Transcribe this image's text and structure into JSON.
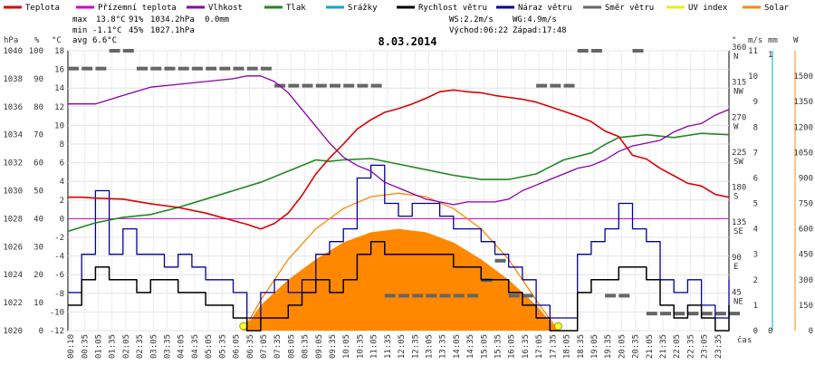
{
  "chart_data": {
    "type": "line",
    "title": "8.03.2014",
    "legend": [
      {
        "name": "Teplota",
        "color": "#dd0000"
      },
      {
        "name": "Přízemní teplota",
        "color": "#cc00cc"
      },
      {
        "name": "Vlhkost",
        "color": "#8800aa"
      },
      {
        "name": "Tlak",
        "color": "#228822"
      },
      {
        "name": "Srážky",
        "color": "#00aacc"
      },
      {
        "name": "Rychlost větru",
        "color": "#000000"
      },
      {
        "name": "Náraz větru",
        "color": "#000099"
      },
      {
        "name": "Směr větru",
        "color": "#666666"
      },
      {
        "name": "UV index",
        "color": "#eeee00"
      },
      {
        "name": "Solar",
        "color": "#ff8800"
      }
    ],
    "stats": {
      "max_label": "max",
      "max_temp": "13.8°C",
      "max_hum": "91%",
      "max_press": "1034.2hPa",
      "rain": "0.0mm",
      "min_label": "min",
      "min_temp": "-1.1°C",
      "min_hum": "45%",
      "min_press": "1027.1hPa",
      "avg_label": "avg",
      "avg_temp": "6.6°C"
    },
    "wind_info": {
      "ws": "WS:2.2m/s",
      "wg": "WG:4.9m/s",
      "sunrise": "Východ:06:22",
      "sunset": "Západ:17:48"
    },
    "axes": {
      "hpa_unit": "hPa",
      "pct_unit": "%",
      "temp_unit": "°C",
      "hpa_ticks": [
        "1040",
        "1038",
        "1036",
        "1034",
        "1032",
        "1030",
        "1028",
        "1026",
        "1024",
        "1022",
        "1020"
      ],
      "pct_ticks": [
        "100",
        "90",
        "80",
        "70",
        "60",
        "50",
        "40",
        "30",
        "20",
        "10",
        "0"
      ],
      "temp_ticks": [
        "18",
        "16",
        "14",
        "12",
        "10",
        "8",
        "6",
        "4",
        "2",
        "0",
        "-2",
        "-4",
        "-6",
        "-8",
        "-10",
        "-12"
      ],
      "dir_unit": "°",
      "dir_ticks": [
        {
          "deg": "360",
          "name": "N"
        },
        {
          "deg": "315",
          "name": "NW"
        },
        {
          "deg": "270",
          "name": "W"
        },
        {
          "deg": "225",
          "name": "SW"
        },
        {
          "deg": "180",
          "name": "S"
        },
        {
          "deg": "135",
          "name": "SE"
        },
        {
          "deg": "90",
          "name": "E"
        },
        {
          "deg": "45",
          "name": "NE"
        }
      ],
      "wind_unit": "m/s",
      "wind_ticks": [
        "11",
        "10",
        "9",
        "8",
        "7",
        "6",
        "5",
        "4",
        "3",
        "2",
        "1",
        "0"
      ],
      "rain_unit": "mm",
      "rain_ticks": [
        "1",
        "0"
      ],
      "solar_unit": "W",
      "solar_ticks": [
        "1500",
        "1350",
        "1200",
        "1050",
        "900",
        "750",
        "600",
        "450",
        "300",
        "150",
        "0"
      ],
      "xlabel": "čas",
      "time_ticks": [
        "00:10",
        "00:35",
        "01:05",
        "01:35",
        "02:05",
        "02:35",
        "03:05",
        "03:35",
        "04:05",
        "04:35",
        "05:05",
        "05:35",
        "06:05",
        "06:35",
        "07:05",
        "07:35",
        "08:05",
        "08:35",
        "09:05",
        "09:35",
        "10:05",
        "10:35",
        "11:05",
        "11:35",
        "12:05",
        "12:35",
        "13:05",
        "13:35",
        "14:05",
        "14:35",
        "15:05",
        "15:35",
        "16:05",
        "16:35",
        "17:05",
        "17:35",
        "18:05",
        "18:35",
        "19:05",
        "19:35",
        "20:05",
        "20:35",
        "21:05",
        "21:35",
        "22:05",
        "22:35",
        "23:05",
        "23:35"
      ]
    },
    "x_hours": [
      0,
      24
    ],
    "ylim_temp": [
      -12,
      18
    ],
    "series": [
      {
        "name": "Teplota",
        "unit": "°C",
        "x": [
          0,
          0.5,
          1,
          2,
          3,
          4,
          5,
          6,
          6.5,
          7,
          7.5,
          8,
          8.5,
          9,
          9.5,
          10,
          10.5,
          11,
          11.5,
          12,
          12.5,
          13,
          13.5,
          14,
          14.5,
          15,
          15.5,
          16,
          16.5,
          17,
          17.5,
          18,
          18.5,
          19,
          19.5,
          20,
          20.5,
          21,
          21.5,
          22,
          22.5,
          23,
          23.5,
          24
        ],
        "values": [
          2.3,
          2.3,
          2.2,
          2.1,
          1.6,
          1.2,
          0.6,
          -0.2,
          -0.6,
          -1.1,
          -0.5,
          0.6,
          2.5,
          4.8,
          6.5,
          8.0,
          9.6,
          10.6,
          11.4,
          11.8,
          12.3,
          12.9,
          13.6,
          13.8,
          13.6,
          13.5,
          13.2,
          13.0,
          12.8,
          12.5,
          12.0,
          11.5,
          11.0,
          10.4,
          9.4,
          8.8,
          6.8,
          6.4,
          5.4,
          4.6,
          3.8,
          3.5,
          2.6,
          2.3
        ]
      },
      {
        "name": "Přízemní teplota",
        "unit": "°C",
        "x": [
          0,
          24
        ],
        "values": [
          0,
          0
        ]
      },
      {
        "name": "Vlhkost",
        "unit": "%",
        "x": [
          0,
          1,
          2,
          3,
          4,
          5,
          6,
          6.5,
          7,
          7.5,
          8,
          8.5,
          9,
          9.5,
          10,
          10.5,
          11,
          11.5,
          12,
          12.5,
          13,
          13.5,
          14,
          14.5,
          15,
          15.5,
          16,
          16.5,
          17,
          17.5,
          18,
          18.5,
          19,
          19.5,
          20,
          20.5,
          21,
          21.5,
          22,
          22.5,
          23,
          23.5,
          24
        ],
        "values": [
          81,
          81,
          84,
          87,
          88,
          89,
          90,
          91,
          91,
          89,
          85,
          79,
          73,
          67,
          62,
          59,
          57,
          53,
          51,
          49,
          47,
          46,
          45,
          46,
          46,
          46,
          47,
          50,
          52,
          54,
          56,
          58,
          59,
          61,
          64,
          66,
          67,
          68,
          71,
          73,
          74,
          77,
          79
        ]
      },
      {
        "name": "Tlak",
        "unit": "hPa",
        "x": [
          0,
          1,
          2,
          3,
          4,
          5,
          6,
          7,
          8,
          8.5,
          9,
          9.5,
          10,
          11,
          12,
          13,
          14,
          15,
          16,
          17,
          17.5,
          18,
          19,
          19.5,
          20,
          21,
          22,
          23,
          24
        ],
        "values": [
          1027.1,
          1027.7,
          1028.1,
          1028.3,
          1028.8,
          1029.4,
          1030.0,
          1030.6,
          1031.4,
          1031.8,
          1032.2,
          1032.1,
          1032.2,
          1032.3,
          1031.9,
          1031.5,
          1031.1,
          1030.8,
          1030.8,
          1031.2,
          1031.7,
          1032.2,
          1032.7,
          1033.3,
          1033.8,
          1034.0,
          1033.8,
          1034.1,
          1034.0
        ]
      },
      {
        "name": "Srážky",
        "unit": "mm",
        "x": [
          0,
          24
        ],
        "values": [
          0,
          0
        ]
      },
      {
        "name": "Rychlost větru",
        "unit": "m/s",
        "x": [
          0,
          0.5,
          1,
          1.5,
          2,
          2.5,
          3,
          3.5,
          4,
          4.5,
          5,
          5.5,
          6,
          6.5,
          7,
          7.5,
          8,
          8.5,
          9,
          9.5,
          10,
          10.5,
          11,
          11.5,
          12,
          12.5,
          13,
          13.5,
          14,
          14.5,
          15,
          15.5,
          16,
          16.5,
          17,
          17.5,
          18,
          18.5,
          19,
          19.5,
          20,
          20.5,
          21,
          21.5,
          22,
          22.5,
          23,
          23.5,
          24
        ],
        "values": [
          1,
          2,
          2.5,
          2,
          2,
          1.5,
          2,
          2,
          1.5,
          1.5,
          1,
          1,
          0.5,
          0,
          0.5,
          0.5,
          1,
          1.5,
          2,
          1.5,
          2,
          3,
          3.5,
          3,
          3,
          3,
          3,
          3,
          2.5,
          2.5,
          2,
          2,
          1.5,
          1,
          0.5,
          0,
          0,
          1.5,
          2,
          2,
          2.5,
          2.5,
          2,
          1,
          0.5,
          1,
          0.5,
          0,
          1
        ]
      },
      {
        "name": "Náraz větru",
        "unit": "m/s",
        "x": [
          0,
          0.5,
          1,
          1.5,
          2,
          2.5,
          3,
          3.5,
          4,
          4.5,
          5,
          5.5,
          6,
          6.5,
          7,
          7.5,
          8,
          8.5,
          9,
          9.5,
          10,
          10.5,
          11,
          11.5,
          12,
          12.5,
          13,
          13.5,
          14,
          14.5,
          15,
          15.5,
          16,
          16.5,
          17,
          17.5,
          18,
          18.5,
          19,
          19.5,
          20,
          20.5,
          21,
          21.5,
          22,
          22.5,
          23,
          23.5,
          24
        ],
        "values": [
          1.5,
          3,
          5.5,
          3,
          4,
          3,
          3,
          2.5,
          3,
          2.5,
          2,
          2,
          1.5,
          0.5,
          1.5,
          2,
          1.5,
          2,
          3,
          3.5,
          4,
          6,
          6.5,
          5,
          4.5,
          5,
          5,
          4.5,
          4,
          4,
          3.5,
          3,
          2.5,
          2,
          1,
          0.5,
          0.5,
          3,
          3.5,
          4,
          5,
          4,
          3.5,
          2,
          1.5,
          2,
          1,
          0.5,
          2
        ]
      },
      {
        "name": "Solar",
        "unit": "W",
        "x": [
          6.37,
          7,
          8,
          9,
          10,
          11,
          12,
          13,
          14,
          15,
          16,
          17,
          17.8
        ],
        "values": [
          0,
          150,
          300,
          420,
          520,
          580,
          600,
          580,
          520,
          420,
          300,
          150,
          0
        ]
      },
      {
        "name": "Solar theoretical",
        "unit": "W",
        "x": [
          6.37,
          7,
          8,
          9,
          10,
          11,
          12,
          13,
          14,
          15,
          16,
          17,
          17.8
        ],
        "values": [
          0,
          180,
          420,
          600,
          720,
          790,
          810,
          790,
          720,
          600,
          420,
          180,
          0
        ]
      },
      {
        "name": "UV index",
        "unit": "",
        "x": [
          6.37,
          17.8
        ],
        "values": [
          0,
          0
        ]
      }
    ],
    "wind_direction_deg": {
      "x": [
        0,
        0.5,
        1,
        1.5,
        2,
        2.5,
        3,
        3.5,
        4,
        4.5,
        5,
        5.5,
        6,
        6.5,
        7,
        7.5,
        8,
        8.5,
        9,
        9.5,
        10,
        10.5,
        11,
        11.5,
        12,
        12.5,
        13,
        13.5,
        14,
        14.5,
        15,
        15.5,
        16,
        16.5,
        17,
        17.5,
        18,
        18.5,
        19,
        19.5,
        20,
        20.5,
        21,
        21.5,
        22,
        22.5,
        23,
        23.5,
        24
      ],
      "values": [
        337,
        337,
        337,
        360,
        360,
        337,
        337,
        337,
        337,
        337,
        337,
        337,
        337,
        337,
        337,
        315,
        315,
        315,
        315,
        315,
        315,
        315,
        315,
        45,
        45,
        45,
        45,
        45,
        45,
        45,
        65,
        90,
        45,
        45,
        315,
        315,
        315,
        360,
        360,
        45,
        45,
        360,
        22,
        22,
        22,
        22,
        22,
        22,
        22
      ]
    }
  }
}
